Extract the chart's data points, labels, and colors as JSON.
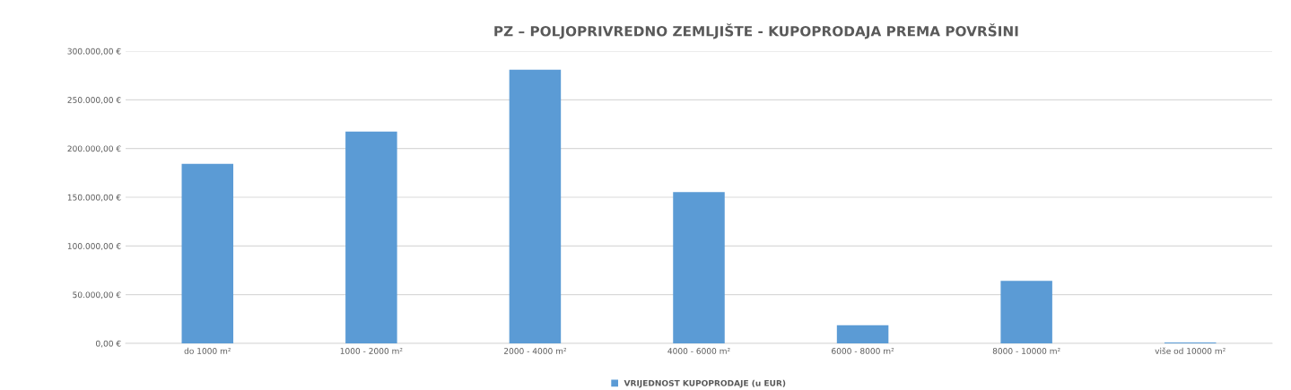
{
  "chart_data": {
    "type": "bar",
    "title": "PZ – POLJOPRIVREDNO ZEMLJIŠTE - KUPOPRODAJA PREMA POVRŠINI",
    "categories": [
      "do 1000 m²",
      "1000 - 2000 m²",
      "2000 - 4000 m²",
      "4000 - 6000 m²",
      "6000 - 8000 m²",
      "8000 - 10000 m²",
      "više od 10000 m²"
    ],
    "series": [
      {
        "name": "VRIJEDNOST KUPOPRODAJE (u EUR)",
        "color": "#5b9bd5",
        "values": [
          184300,
          217400,
          280900,
          155300,
          18600,
          64300,
          1000
        ]
      }
    ],
    "ylim": [
      0,
      300000
    ],
    "yticks": [
      {
        "value": 0,
        "label": "0,00 €"
      },
      {
        "value": 50000,
        "label": "50.000,00 €"
      },
      {
        "value": 100000,
        "label": "100.000,00 €"
      },
      {
        "value": 150000,
        "label": "150.000,00 €"
      },
      {
        "value": 200000,
        "label": "200.000,00 €"
      },
      {
        "value": 250000,
        "label": "250.000,00 €"
      },
      {
        "value": 300000,
        "label": "300.000,00 €"
      }
    ],
    "grid": "y",
    "legend": "bottom"
  }
}
